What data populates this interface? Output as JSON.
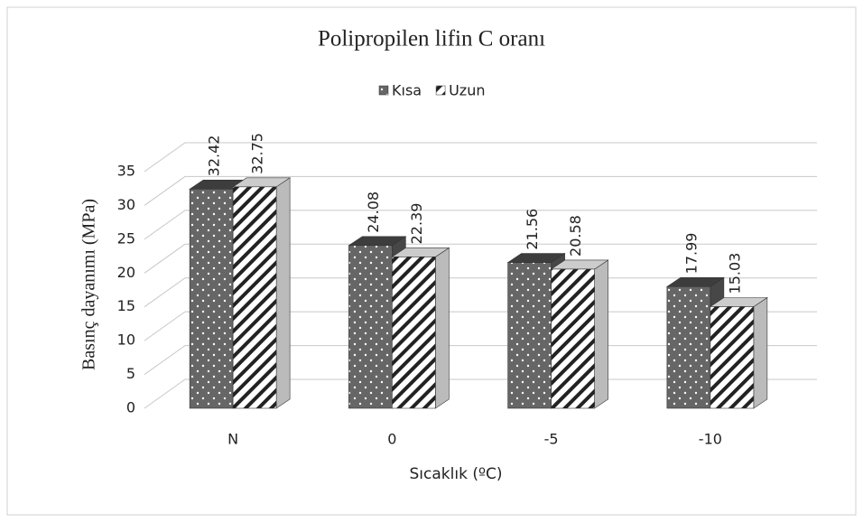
{
  "chart_data": {
    "type": "bar3d",
    "title": "Polipropilen lifin C oranı",
    "x_label": "Sıcaklık (ºC)",
    "y_label": "Basınç dayanımı  (MPa)",
    "categories": [
      "N",
      "0",
      "-5",
      "-10"
    ],
    "series": [
      {
        "name": "Kısa",
        "color": "#666666",
        "values": [
          32.42,
          24.08,
          21.56,
          17.99
        ]
      },
      {
        "name": "Uzun",
        "color": "#ffffff",
        "values": [
          32.75,
          22.39,
          20.58,
          15.03
        ]
      }
    ],
    "ylim": [
      0,
      35
    ],
    "yticks": [
      0,
      5,
      10,
      15,
      20,
      25,
      30,
      35
    ],
    "grid": true
  }
}
